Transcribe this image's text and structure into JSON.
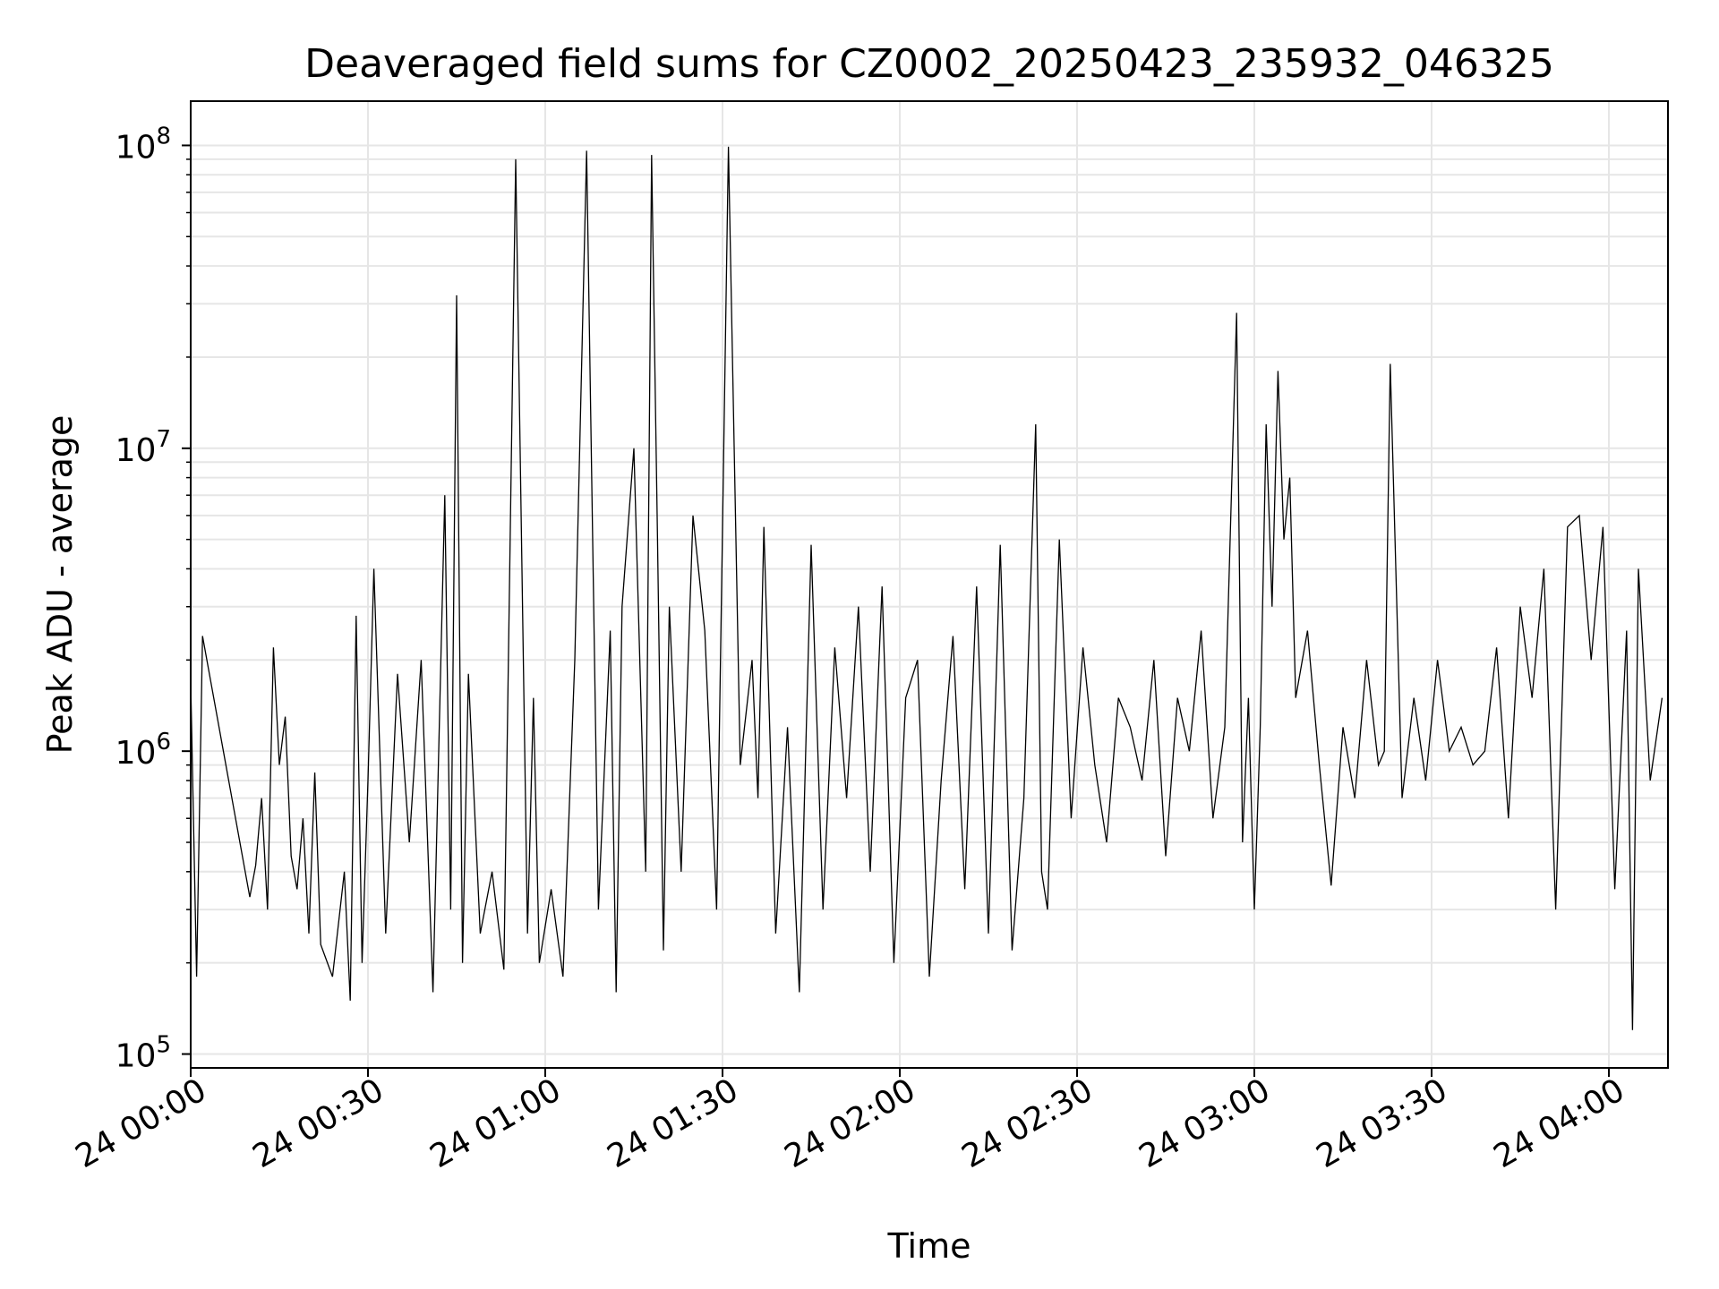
{
  "chart_data": {
    "type": "line",
    "title": "Deaveraged field sums for CZ0002_20250423_235932_046325",
    "xlabel": "Time",
    "ylabel": "Peak ADU - average",
    "x_range": [
      "2025-04-24 00:00",
      "2025-04-24 04:10"
    ],
    "x_ticks": [
      "24 00:00",
      "24 00:30",
      "24 01:00",
      "24 01:30",
      "24 02:00",
      "24 02:30",
      "24 03:00",
      "24 03:30",
      "24 04:00"
    ],
    "y_scale": "log",
    "ylim": [
      90000,
      140000000
    ],
    "y_ticks": [
      {
        "base": "10",
        "exp": "5"
      },
      {
        "base": "10",
        "exp": "6"
      },
      {
        "base": "10",
        "exp": "7"
      },
      {
        "base": "10",
        "exp": "8"
      }
    ],
    "grid": true,
    "line_color": "#000000",
    "series": [
      {
        "x": [
          "2025-04-24 00:00",
          "2025-04-24 00:01",
          "2025-04-24 00:02",
          "2025-04-24 00:10",
          "2025-04-24 00:11",
          "2025-04-24 00:12",
          "2025-04-24 00:13",
          "2025-04-24 00:14",
          "2025-04-24 00:15",
          "2025-04-24 00:16",
          "2025-04-24 00:17",
          "2025-04-24 00:18",
          "2025-04-24 00:19",
          "2025-04-24 00:20",
          "2025-04-24 00:21",
          "2025-04-24 00:22",
          "2025-04-24 00:24",
          "2025-04-24 00:26",
          "2025-04-24 00:27",
          "2025-04-24 00:28",
          "2025-04-24 00:29",
          "2025-04-24 00:30",
          "2025-04-24 00:31",
          "2025-04-24 00:33",
          "2025-04-24 00:35",
          "2025-04-24 00:37",
          "2025-04-24 00:39",
          "2025-04-24 00:41",
          "2025-04-24 00:43",
          "2025-04-24 00:44",
          "2025-04-24 00:45",
          "2025-04-24 00:46",
          "2025-04-24 00:47",
          "2025-04-24 00:49",
          "2025-04-24 00:51",
          "2025-04-24 00:53",
          "2025-04-24 00:55",
          "2025-04-24 00:57",
          "2025-04-24 00:58",
          "2025-04-24 00:59",
          "2025-04-24 01:01",
          "2025-04-24 01:03",
          "2025-04-24 01:05",
          "2025-04-24 01:07",
          "2025-04-24 01:09",
          "2025-04-24 01:11",
          "2025-04-24 01:12",
          "2025-04-24 01:13",
          "2025-04-24 01:15",
          "2025-04-24 01:17",
          "2025-04-24 01:18",
          "2025-04-24 01:19",
          "2025-04-24 01:20",
          "2025-04-24 01:21",
          "2025-04-24 01:23",
          "2025-04-24 01:25",
          "2025-04-24 01:27",
          "2025-04-24 01:29",
          "2025-04-24 01:31",
          "2025-04-24 01:33",
          "2025-04-24 01:35",
          "2025-04-24 01:36",
          "2025-04-24 01:37",
          "2025-04-24 01:39",
          "2025-04-24 01:41",
          "2025-04-24 01:43",
          "2025-04-24 01:45",
          "2025-04-24 01:47",
          "2025-04-24 01:49",
          "2025-04-24 01:51",
          "2025-04-24 01:53",
          "2025-04-24 01:55",
          "2025-04-24 01:57",
          "2025-04-24 01:59",
          "2025-04-24 02:01",
          "2025-04-24 02:03",
          "2025-04-24 02:05",
          "2025-04-24 02:07",
          "2025-04-24 02:09",
          "2025-04-24 02:11",
          "2025-04-24 02:13",
          "2025-04-24 02:15",
          "2025-04-24 02:17",
          "2025-04-24 02:19",
          "2025-04-24 02:21",
          "2025-04-24 02:23",
          "2025-04-24 02:24",
          "2025-04-24 02:25",
          "2025-04-24 02:27",
          "2025-04-24 02:29",
          "2025-04-24 02:31",
          "2025-04-24 02:33",
          "2025-04-24 02:35",
          "2025-04-24 02:37",
          "2025-04-24 02:39",
          "2025-04-24 02:41",
          "2025-04-24 02:43",
          "2025-04-24 02:45",
          "2025-04-24 02:47",
          "2025-04-24 02:49",
          "2025-04-24 02:51",
          "2025-04-24 02:53",
          "2025-04-24 02:55",
          "2025-04-24 02:57",
          "2025-04-24 02:58",
          "2025-04-24 02:59",
          "2025-04-24 03:00",
          "2025-04-24 03:01",
          "2025-04-24 03:02",
          "2025-04-24 03:03",
          "2025-04-24 03:04",
          "2025-04-24 03:05",
          "2025-04-24 03:06",
          "2025-04-24 03:07",
          "2025-04-24 03:09",
          "2025-04-24 03:11",
          "2025-04-24 03:13",
          "2025-04-24 03:15",
          "2025-04-24 03:17",
          "2025-04-24 03:19",
          "2025-04-24 03:21",
          "2025-04-24 03:22",
          "2025-04-24 03:23",
          "2025-04-24 03:25",
          "2025-04-24 03:27",
          "2025-04-24 03:29",
          "2025-04-24 03:31",
          "2025-04-24 03:33",
          "2025-04-24 03:35",
          "2025-04-24 03:37",
          "2025-04-24 03:39",
          "2025-04-24 03:41",
          "2025-04-24 03:43",
          "2025-04-24 03:45",
          "2025-04-24 03:47",
          "2025-04-24 03:49",
          "2025-04-24 03:51",
          "2025-04-24 03:53",
          "2025-04-24 03:55",
          "2025-04-24 03:57",
          "2025-04-24 03:59",
          "2025-04-24 04:01",
          "2025-04-24 04:03",
          "2025-04-24 04:04",
          "2025-04-24 04:05",
          "2025-04-24 04:07",
          "2025-04-24 04:09"
        ],
        "values": [
          1700000,
          180000,
          2400000,
          330000,
          420000,
          700000,
          300000,
          2200000,
          900000,
          1300000,
          450000,
          350000,
          600000,
          250000,
          850000,
          230000,
          180000,
          400000,
          150000,
          2800000,
          200000,
          800000,
          4000000,
          250000,
          1800000,
          500000,
          2000000,
          160000,
          7000000,
          300000,
          32000000,
          200000,
          1800000,
          250000,
          400000,
          190000,
          90000000,
          250000,
          1500000,
          200000,
          350000,
          180000,
          2000000,
          96000000,
          300000,
          2500000,
          160000,
          3000000,
          10000000,
          400000,
          93000000,
          5000000,
          220000,
          3000000,
          400000,
          6000000,
          2500000,
          300000,
          99000000,
          900000,
          2000000,
          700000,
          5500000,
          250000,
          1200000,
          160000,
          4800000,
          300000,
          2200000,
          700000,
          3000000,
          400000,
          3500000,
          200000,
          1500000,
          2000000,
          180000,
          800000,
          2400000,
          350000,
          3500000,
          250000,
          4800000,
          220000,
          700000,
          12000000,
          400000,
          300000,
          5000000,
          600000,
          2200000,
          900000,
          500000,
          1500000,
          1200000,
          800000,
          2000000,
          450000,
          1500000,
          1000000,
          2500000,
          600000,
          1200000,
          28000000,
          500000,
          1500000,
          300000,
          1200000,
          12000000,
          3000000,
          18000000,
          5000000,
          8000000,
          1500000,
          2500000,
          900000,
          360000,
          1200000,
          700000,
          2000000,
          900000,
          1000000,
          19000000,
          700000,
          1500000,
          800000,
          2000000,
          1000000,
          1200000,
          900000,
          1000000,
          2200000,
          600000,
          3000000,
          1500000,
          4000000,
          300000,
          5500000,
          6000000,
          2000000,
          5500000,
          350000,
          2500000,
          120000,
          4000000,
          800000,
          1500000
        ]
      }
    ]
  }
}
